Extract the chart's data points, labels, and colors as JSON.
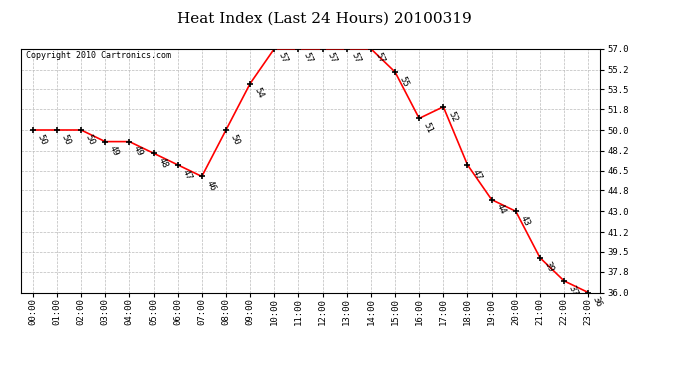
{
  "title": "Heat Index (Last 24 Hours) 20100319",
  "copyright": "Copyright 2010 Cartronics.com",
  "x_labels": [
    "00:00",
    "01:00",
    "02:00",
    "03:00",
    "04:00",
    "05:00",
    "06:00",
    "07:00",
    "08:00",
    "09:00",
    "10:00",
    "11:00",
    "12:00",
    "13:00",
    "14:00",
    "15:00",
    "16:00",
    "17:00",
    "18:00",
    "19:00",
    "20:00",
    "21:00",
    "22:00",
    "23:00"
  ],
  "hours": [
    0,
    1,
    2,
    3,
    4,
    5,
    6,
    7,
    8,
    9,
    10,
    11,
    12,
    13,
    14,
    15,
    16,
    17,
    18,
    19,
    20,
    21,
    22,
    23
  ],
  "values": [
    50,
    50,
    50,
    49,
    49,
    48,
    47,
    46,
    50,
    54,
    57,
    57,
    57,
    57,
    57,
    55,
    51,
    52,
    47,
    44,
    43,
    39,
    37,
    36
  ],
  "ylim_min": 36.0,
  "ylim_max": 57.0,
  "yticks": [
    36.0,
    37.8,
    39.5,
    41.2,
    43.0,
    44.8,
    46.5,
    48.2,
    50.0,
    51.8,
    53.5,
    55.2,
    57.0
  ],
  "line_color": "#ff0000",
  "marker_color": "#000000",
  "bg_color": "#ffffff",
  "grid_color": "#bbbbbb",
  "title_fontsize": 11,
  "copyright_fontsize": 6,
  "label_fontsize": 6.5,
  "tick_fontsize": 6.5
}
